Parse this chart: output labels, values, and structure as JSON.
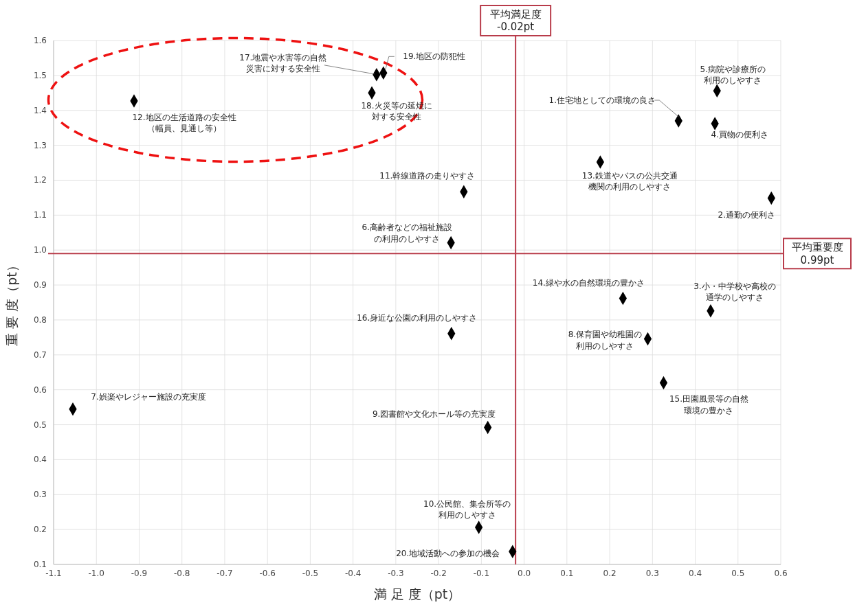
{
  "chart_data": {
    "type": "scatter",
    "xlabel": "満 足 度（pt）",
    "ylabel": "重 要 度（pt）",
    "xlim": [
      -1.1,
      0.6
    ],
    "xticks": [
      {
        "value": -1.1,
        "label": "-1.1"
      },
      {
        "value": -1.0,
        "label": "-1.0"
      },
      {
        "value": -0.9,
        "label": "-0.9"
      },
      {
        "value": -0.8,
        "label": "-0.8"
      },
      {
        "value": -0.7,
        "label": "-0.7"
      },
      {
        "value": -0.6,
        "label": "-0.6"
      },
      {
        "value": -0.5,
        "label": "-0.5"
      },
      {
        "value": -0.4,
        "label": "-0.4"
      },
      {
        "value": -0.3,
        "label": "-0.3"
      },
      {
        "value": -0.2,
        "label": "-0.2"
      },
      {
        "value": -0.1,
        "label": "-0.1"
      },
      {
        "value": 0,
        "label": "0.0"
      },
      {
        "value": 0.1,
        "label": "0.1"
      },
      {
        "value": 0.2,
        "label": "0.2"
      },
      {
        "value": 0.3,
        "label": "0.3"
      },
      {
        "value": 0.4,
        "label": "0.4"
      },
      {
        "value": 0.5,
        "label": "0.5"
      },
      {
        "value": 0.6,
        "label": "0.6"
      }
    ],
    "ylim": [
      0.1,
      1.6
    ],
    "yticks": [
      0.1,
      0.2,
      0.3,
      0.4,
      0.5,
      0.6,
      0.7,
      0.8,
      0.9,
      {
        "value": 1.0,
        "label": "1.0"
      },
      1.1,
      1.2,
      1.3,
      1.4,
      1.5,
      1.6
    ],
    "grid": true,
    "marker": "diamond",
    "series": [
      {
        "color": "#000000",
        "x": [
          0.361,
          0.578,
          0.436,
          0.446,
          0.451,
          -0.171,
          -1.055,
          0.289,
          -0.085,
          -0.106,
          -0.141,
          -0.912,
          0.178,
          0.231,
          0.326,
          -0.17,
          -0.345,
          -0.356,
          -0.329,
          -0.027
        ],
        "values": [
          1.37,
          1.149,
          0.826,
          1.362,
          1.456,
          1.021,
          0.545,
          0.746,
          0.492,
          0.206,
          1.167,
          1.427,
          1.252,
          0.862,
          0.62,
          0.761,
          1.502,
          1.45,
          1.507,
          0.137
        ]
      }
    ],
    "ref_lines": [
      {
        "axis": "x",
        "value": -0.02,
        "label": "平均満足度\n-0.02pt",
        "color": "#b83b4a"
      },
      {
        "axis": "y",
        "value": 0.99,
        "label": "平均重要度\n0.99pt",
        "color": "#b83b4a"
      }
    ],
    "annotations": [
      {
        "text": "1.住宅地としての環境の良さ",
        "x": 0.361,
        "y": 1.37
      },
      "2.通勤の便利さ",
      "3.小・中学校や高校の通学のしやすさ",
      "4.買物の便利さ",
      "5.病院や診療所の利用のしやすさ",
      "6.高齢者などの福祉施設の利用のしやすさ",
      "7.娯楽やレジャー施設の充実度",
      "8.保育園や幼稚園の利用のしやすさ",
      "9.図書館や文化ホール等の充実度",
      "10.公民館、集会所等の利用のしやすさ",
      "11.幹線道路の走りやすさ",
      "12.地区の生活道路の安全性（幅員、見通し等）",
      "13.鉄道やバスの公共交通機関の利用のしやすさ",
      "14.緑や水の自然環境の豊かさ",
      "15.田園風景等の自然環境の豊かさ",
      "16.身近な公園の利用のしやすさ",
      {
        "text": "17.地震や水害等の自然災害に対する安全性",
        "x": -0.345,
        "y": 1.502
      },
      "18.火災等の延焼に対する安全性",
      {
        "text": "19.地区の防犯性",
        "x": -0.329,
        "y": 1.507
      },
      "20.地域活動への参加の機会"
    ]
  }
}
